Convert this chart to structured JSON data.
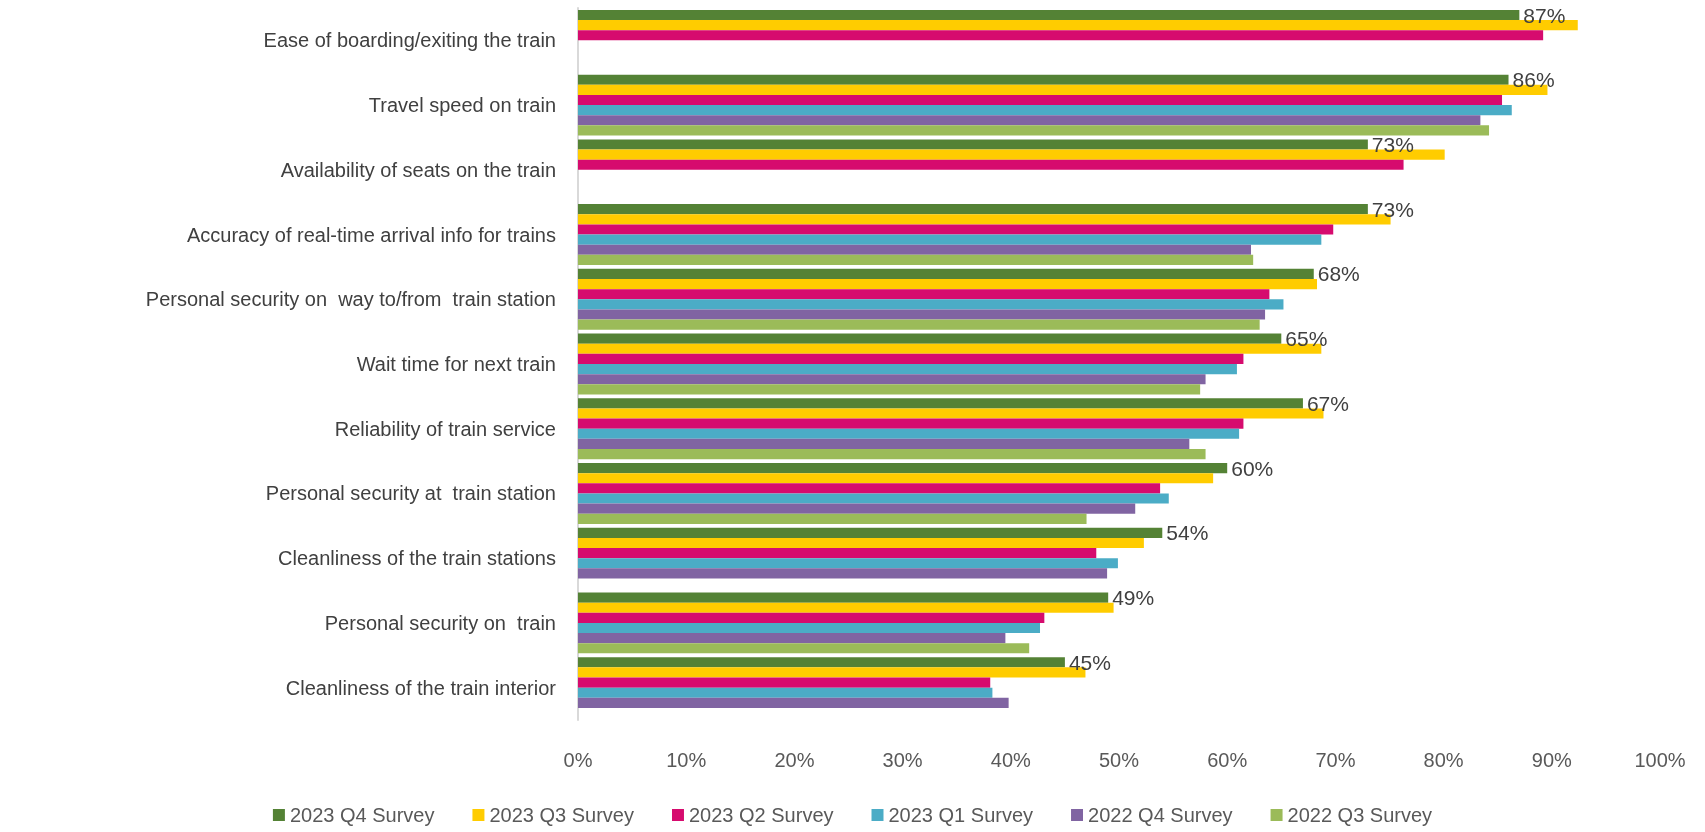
{
  "chart_data": {
    "type": "bar",
    "orientation": "horizontal",
    "categories": [
      "Ease of boarding/exiting the train",
      "Travel speed on train",
      "Availability of seats on the train",
      "Accuracy of real-time arrival info for trains",
      "Personal security on  way to/from  train station",
      "Wait time for next train",
      "Reliability of train service",
      "Personal security at  train station",
      "Cleanliness of the train stations",
      "Personal security on  train",
      "Cleanliness of the train interior"
    ],
    "series": [
      {
        "name": "2023 Q4 Survey",
        "color": "#548235",
        "values": [
          87,
          86,
          73,
          73,
          68,
          65,
          67,
          60,
          54,
          49,
          45
        ],
        "value_labels": [
          "87%",
          "86%",
          "73%",
          "73%",
          "68%",
          "65%",
          "67%",
          "60%",
          "54%",
          "49%",
          "45%"
        ]
      },
      {
        "name": "2023 Q3 Survey",
        "color": "#ffcc00",
        "values": [
          92.4,
          89.6,
          80.1,
          75.1,
          68.3,
          68.7,
          68.9,
          58.7,
          52.3,
          49.5,
          46.9
        ]
      },
      {
        "name": "2023 Q2 Survey",
        "color": "#d60b6e",
        "values": [
          89.2,
          85.4,
          76.3,
          69.8,
          63.9,
          61.5,
          61.5,
          53.8,
          47.9,
          43.1,
          38.1
        ]
      },
      {
        "name": "2023 Q1 Survey",
        "color": "#4bacc6",
        "values": [
          null,
          86.3,
          null,
          68.7,
          65.2,
          60.9,
          61.1,
          54.6,
          49.9,
          42.7,
          38.3
        ]
      },
      {
        "name": "2022 Q4 Survey",
        "color": "#8064a2",
        "values": [
          null,
          83.4,
          null,
          62.2,
          63.5,
          58.0,
          56.5,
          51.5,
          48.9,
          39.5,
          39.8
        ]
      },
      {
        "name": "2022 Q3 Survey",
        "color": "#9bbb59",
        "values": [
          null,
          84.2,
          null,
          62.4,
          63.0,
          57.5,
          58.0,
          47.0,
          null,
          41.7,
          null
        ]
      }
    ],
    "xlim": [
      0,
      100
    ],
    "xticks": [
      {
        "value": 0,
        "label": "0%"
      },
      {
        "value": 10,
        "label": "10%"
      },
      {
        "value": 20,
        "label": "20%"
      },
      {
        "value": 30,
        "label": "30%"
      },
      {
        "value": 40,
        "label": "40%"
      },
      {
        "value": 50,
        "label": "50%"
      },
      {
        "value": 60,
        "label": "60%"
      },
      {
        "value": 70,
        "label": "70%"
      },
      {
        "value": 80,
        "label": "80%"
      },
      {
        "value": 90,
        "label": "90%"
      },
      {
        "value": 100,
        "label": "100%"
      }
    ],
    "grid": false,
    "legend": "bottom"
  }
}
